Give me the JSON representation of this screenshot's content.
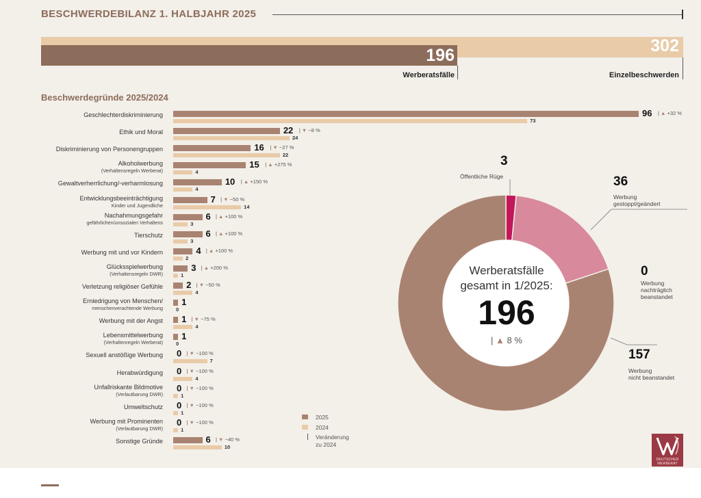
{
  "header": {
    "title": "BESCHWERDEBILANZ 1. HALBJAHR 2025"
  },
  "summary": {
    "werberatsfaelle_value": "196",
    "werberatsfaelle_label": "Werberatsfälle",
    "einzelbeschwerden_value": "302",
    "einzelbeschwerden_label": "Einzelbeschwerden"
  },
  "section_title": "Beschwerdegründe 2025/2024",
  "chart_data": [
    {
      "type": "bar",
      "orientation": "horizontal",
      "series_names": [
        "2025",
        "2024"
      ],
      "max_value": 96,
      "rows": [
        {
          "label": "Geschlechterdiskriminierung",
          "sub": "",
          "v2025": 96,
          "v2024": 73,
          "change": "+32 %",
          "dir": "up"
        },
        {
          "label": "Ethik und Moral",
          "sub": "",
          "v2025": 22,
          "v2024": 24,
          "change": "−8 %",
          "dir": "down"
        },
        {
          "label": "Diskriminierung von Personengruppen",
          "sub": "",
          "v2025": 16,
          "v2024": 22,
          "change": "−27 %",
          "dir": "down"
        },
        {
          "label": "Alkoholwerbung",
          "sub": "(Verhaltensregeln Werberat)",
          "v2025": 15,
          "v2024": 4,
          "change": "+275 %",
          "dir": "up"
        },
        {
          "label": "Gewaltverherrlichung/-verharmlosung",
          "sub": "",
          "v2025": 10,
          "v2024": 4,
          "change": "+150 %",
          "dir": "up"
        },
        {
          "label": "Entwicklungsbeeinträchtigung",
          "sub": "Kinder und Jugendliche",
          "v2025": 7,
          "v2024": 14,
          "change": "−50 %",
          "dir": "down"
        },
        {
          "label": "Nachahmungsgefahr",
          "sub": "gefährlichen/unsozialen Verhaltens",
          "v2025": 6,
          "v2024": 3,
          "change": "+100 %",
          "dir": "up"
        },
        {
          "label": "Tierschutz",
          "sub": "",
          "v2025": 6,
          "v2024": 3,
          "change": "+100 %",
          "dir": "up"
        },
        {
          "label": "Werbung mit und vor Kindern",
          "sub": "",
          "v2025": 4,
          "v2024": 2,
          "change": "+100 %",
          "dir": "up"
        },
        {
          "label": "Glücksspielwerbung",
          "sub": "(Verhaltensregeln DWR)",
          "v2025": 3,
          "v2024": 1,
          "change": "+200 %",
          "dir": "up"
        },
        {
          "label": "Verletzung religiöser Gefühle",
          "sub": "",
          "v2025": 2,
          "v2024": 4,
          "change": "−50 %",
          "dir": "down"
        },
        {
          "label": "Erniedrigung von Menschen/",
          "sub": "menschenverachtende Werbung",
          "v2025": 1,
          "v2024": 0,
          "change": "",
          "dir": ""
        },
        {
          "label": "Werbung mit der Angst",
          "sub": "",
          "v2025": 1,
          "v2024": 4,
          "change": "−75 %",
          "dir": "down"
        },
        {
          "label": "Lebensmittelwerbung",
          "sub": "(Verhaltenregeln Werberat)",
          "v2025": 1,
          "v2024": 0,
          "change": "",
          "dir": ""
        },
        {
          "label": "Sexuell anstößige Werbung",
          "sub": "",
          "v2025": 0,
          "v2024": 7,
          "change": "−100 %",
          "dir": "down"
        },
        {
          "label": "Herabwürdigung",
          "sub": "",
          "v2025": 0,
          "v2024": 4,
          "change": "−100 %",
          "dir": "down"
        },
        {
          "label": "Unfallriskante Bildmotive",
          "sub": "(Verlautbarung DWR)",
          "v2025": 0,
          "v2024": 1,
          "change": "−100 %",
          "dir": "down"
        },
        {
          "label": "Umweltschutz",
          "sub": "",
          "v2025": 0,
          "v2024": 1,
          "change": "−100 %",
          "dir": "down"
        },
        {
          "label": "Werbung mit Prominenten",
          "sub": "(Verlautbarung DWR)",
          "v2025": 0,
          "v2024": 1,
          "change": "−100 %",
          "dir": "down"
        },
        {
          "label": "Sonstige Gründe",
          "sub": "",
          "v2025": 6,
          "v2024": 10,
          "change": "−40 %",
          "dir": "down"
        }
      ]
    },
    {
      "type": "pie",
      "variant": "donut",
      "total": 196,
      "center_label_line1": "Werberatsfälle",
      "center_label_line2": "gesamt in 1/2025:",
      "center_value": "196",
      "center_change": "8 %",
      "slices": [
        {
          "label": "Öffentliche Rüge",
          "value": 3,
          "value_text": "3",
          "color": "#c2185b"
        },
        {
          "label": "Werbung gestoppt/geändert",
          "label_lines": [
            "Werbung",
            "gestoppt/geändert"
          ],
          "value": 36,
          "value_text": "36",
          "color": "#d8899c"
        },
        {
          "label": "Werbung nachträglich beanstandet",
          "label_lines": [
            "Werbung",
            "nachträglich",
            "beanstandet"
          ],
          "value": 0,
          "value_text": "0",
          "color": "#e9cba8"
        },
        {
          "label": "Werbung nicht beanstandet",
          "label_lines": [
            "Werbung",
            "nicht beanstandet"
          ],
          "value": 157,
          "value_text": "157",
          "color": "#a98371"
        }
      ]
    }
  ],
  "legend": {
    "y2025": "2025",
    "y2024": "2024",
    "change_line1": "Veränderung",
    "change_line2": "zu 2024"
  },
  "colors": {
    "accent_brown": "#8c6c5b",
    "bar_2025": "#a98371",
    "bar_2024": "#e9cba8",
    "logo_red": "#9b3a44"
  },
  "logo": {
    "line1": "DEUTSCHER",
    "line2": "WERBERAT"
  }
}
